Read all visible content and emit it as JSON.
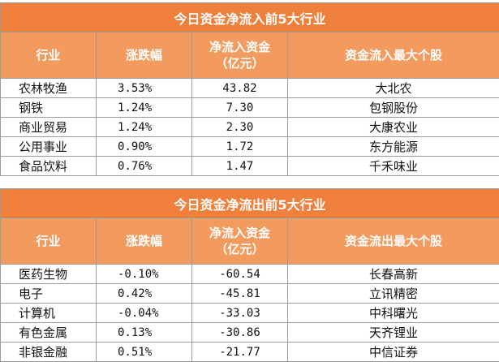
{
  "inflow": {
    "title": "今日资金净流入前5大行业",
    "headers": [
      "行业",
      "涨跌幅",
      "净流入资金（亿元）",
      "资金流入最大个股"
    ],
    "header_flow_line1": "净流入资金",
    "header_flow_line2": "（亿元）",
    "rows": [
      {
        "industry": "农林牧渔",
        "change": "3.53%",
        "flow": "43.82",
        "stock": "大北农"
      },
      {
        "industry": "钢铁",
        "change": "1.24%",
        "flow": "7.30",
        "stock": "包钢股份"
      },
      {
        "industry": "商业贸易",
        "change": "1.24%",
        "flow": "2.30",
        "stock": "大康农业"
      },
      {
        "industry": "公用事业",
        "change": "0.90%",
        "flow": "1.72",
        "stock": "东方能源"
      },
      {
        "industry": "食品饮料",
        "change": "0.76%",
        "flow": "1.47",
        "stock": "千禾味业"
      }
    ]
  },
  "outflow": {
    "title": "今日资金净流出前5大行业",
    "headers": [
      "行业",
      "涨跌幅",
      "净流入资金（亿元）",
      "资金流出最大个股"
    ],
    "header_flow_line1": "净流入资金",
    "header_flow_line2": "（亿元）",
    "rows": [
      {
        "industry": "医药生物",
        "change": "-0.10%",
        "flow": "-60.54",
        "stock": "长春高新"
      },
      {
        "industry": "电子",
        "change": "0.42%",
        "flow": "-45.81",
        "stock": "立讯精密"
      },
      {
        "industry": "计算机",
        "change": "-0.04%",
        "flow": "-33.03",
        "stock": "中科曙光"
      },
      {
        "industry": "有色金属",
        "change": "0.13%",
        "flow": "-30.86",
        "stock": "天齐锂业"
      },
      {
        "industry": "非银金融",
        "change": "0.51%",
        "flow": "-21.77",
        "stock": "中信证券"
      }
    ]
  }
}
